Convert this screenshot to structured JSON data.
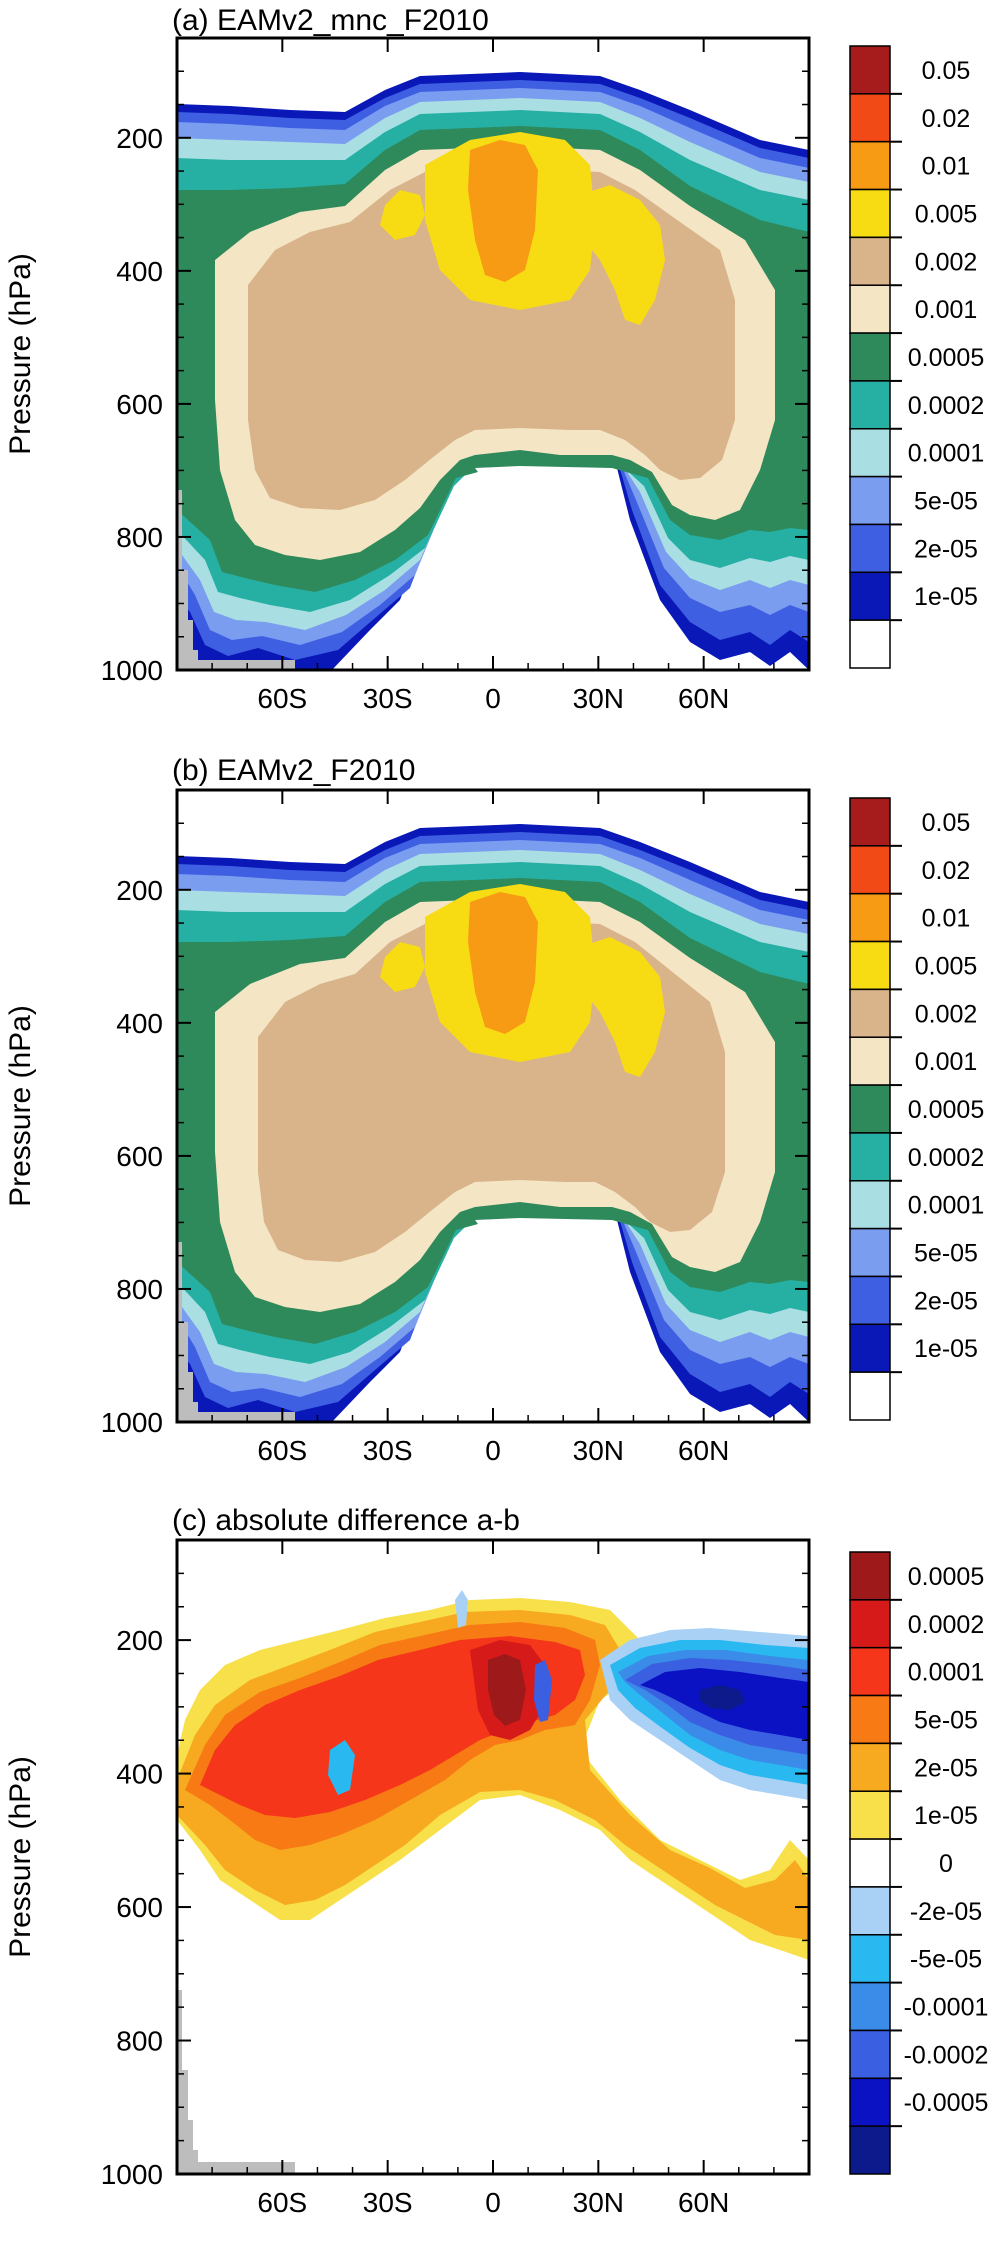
{
  "chart_data": [
    {
      "type": "heatmap",
      "title": "(a) EAMv2_mnc_F2010",
      "ylabel": "Pressure (hPa)",
      "xlabel": "",
      "ylim": [
        1000,
        50
      ],
      "xlim": [
        -90,
        90
      ],
      "x_ticks": [
        -60,
        -30,
        0,
        30,
        60
      ],
      "x_tick_labels": [
        "60S",
        "30S",
        "0",
        "30N",
        "60N"
      ],
      "y_ticks": [
        200,
        400,
        600,
        800,
        1000
      ],
      "y_tick_labels": [
        "200",
        "400",
        "600",
        "800",
        "1000"
      ],
      "colorbar_levels": [
        "0.05",
        "0.02",
        "0.01",
        "0.005",
        "0.002",
        "0.001",
        "0.0005",
        "0.0002",
        "0.0001",
        "5e-05",
        "2e-05",
        "1e-05"
      ],
      "colorbar_colors": [
        "#a61c1c",
        "#f24a17",
        "#f79b14",
        "#f7dc14",
        "#d9b48a",
        "#f4e5c4",
        "#2e8a5a",
        "#26b0a4",
        "#a9dfe3",
        "#7b9df0",
        "#3f5fe3",
        "#0a18b8",
        "#ffffff"
      ],
      "grid": false
    },
    {
      "type": "heatmap",
      "title": "(b) EAMv2_F2010",
      "ylabel": "Pressure (hPa)",
      "xlabel": "",
      "ylim": [
        1000,
        50
      ],
      "xlim": [
        -90,
        90
      ],
      "x_ticks": [
        -60,
        -30,
        0,
        30,
        60
      ],
      "x_tick_labels": [
        "60S",
        "30S",
        "0",
        "30N",
        "60N"
      ],
      "y_ticks": [
        200,
        400,
        600,
        800,
        1000
      ],
      "y_tick_labels": [
        "200",
        "400",
        "600",
        "800",
        "1000"
      ],
      "colorbar_levels": [
        "0.05",
        "0.02",
        "0.01",
        "0.005",
        "0.002",
        "0.001",
        "0.0005",
        "0.0002",
        "0.0001",
        "5e-05",
        "2e-05",
        "1e-05"
      ],
      "colorbar_colors": [
        "#a61c1c",
        "#f24a17",
        "#f79b14",
        "#f7dc14",
        "#d9b48a",
        "#f4e5c4",
        "#2e8a5a",
        "#26b0a4",
        "#a9dfe3",
        "#7b9df0",
        "#3f5fe3",
        "#0a18b8",
        "#ffffff"
      ],
      "grid": false
    },
    {
      "type": "heatmap",
      "title": "(c) absolute difference a-b",
      "ylabel": "Pressure (hPa)",
      "xlabel": "",
      "ylim": [
        1000,
        50
      ],
      "xlim": [
        -90,
        90
      ],
      "x_ticks": [
        -60,
        -30,
        0,
        30,
        60
      ],
      "x_tick_labels": [
        "60S",
        "30S",
        "0",
        "30N",
        "60N"
      ],
      "y_ticks": [
        200,
        400,
        600,
        800,
        1000
      ],
      "y_tick_labels": [
        "200",
        "400",
        "600",
        "800",
        "1000"
      ],
      "colorbar_levels": [
        "0.0005",
        "0.0002",
        "0.0001",
        "5e-05",
        "2e-05",
        "1e-05",
        "0",
        "-2e-05",
        "-5e-05",
        "-0.0001",
        "-0.0002",
        "-0.0005"
      ],
      "colorbar_colors": [
        "#9e1a1a",
        "#d61a1a",
        "#f5361a",
        "#f77a14",
        "#f7a91f",
        "#f7e04a",
        "#ffffff",
        "#a8d1f5",
        "#2ab8f0",
        "#3b8ce8",
        "#3a5fe0",
        "#0a12c4",
        "#0c1a8c"
      ],
      "grid": false
    }
  ]
}
